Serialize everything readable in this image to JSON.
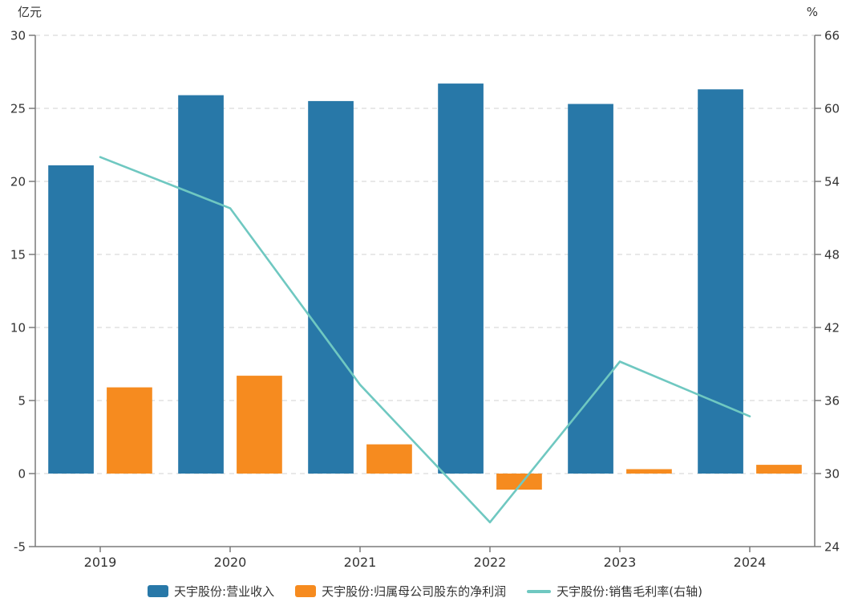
{
  "chart_data": {
    "type": "bar",
    "subtype": "bar-line-combo-dual-axis",
    "categories": [
      "2019",
      "2020",
      "2021",
      "2022",
      "2023",
      "2024"
    ],
    "series": [
      {
        "name": "天宇股份:营业收入",
        "type": "bar",
        "axis": "left",
        "color": "#2878a8",
        "values": [
          21.1,
          25.9,
          25.5,
          26.7,
          25.3,
          26.3
        ]
      },
      {
        "name": "天宇股份:归属母公司股东的净利润",
        "type": "bar",
        "axis": "left",
        "color": "#f68b1f",
        "values": [
          5.9,
          6.7,
          2.0,
          -1.1,
          0.3,
          0.6
        ]
      },
      {
        "name": "天宇股份:销售毛利率(右轴)",
        "type": "line",
        "axis": "right",
        "color": "#6fc8c1",
        "values": [
          56.0,
          51.8,
          37.3,
          26.0,
          39.2,
          34.7
        ]
      }
    ],
    "left_axis": {
      "unit": "亿元",
      "min": -5,
      "max": 30,
      "ticks": [
        30,
        25,
        20,
        15,
        10,
        5,
        0,
        -5
      ]
    },
    "right_axis": {
      "unit": "%",
      "min": 24,
      "max": 66,
      "ticks": [
        66,
        60,
        54,
        48,
        42,
        36,
        30,
        24
      ]
    },
    "title": "",
    "xlabel": "",
    "ylabel": "亿元",
    "grid": true,
    "grid_style": "dashed",
    "legend_position": "bottom",
    "colors": {
      "grid": "#d9d9d9",
      "axis": "#7a7a7a",
      "text": "#333333",
      "background": "#ffffff"
    }
  }
}
